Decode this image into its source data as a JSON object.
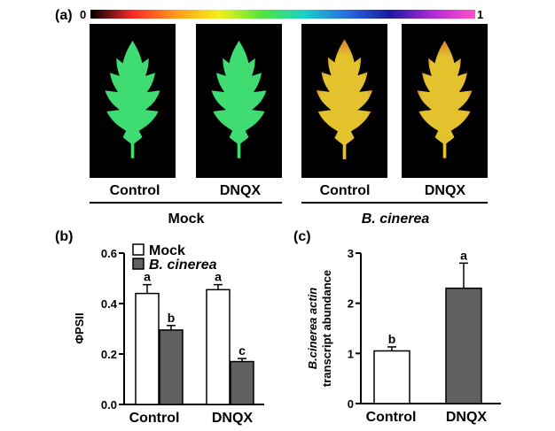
{
  "panel_a": {
    "letter": "(a)",
    "scale_min": "0",
    "scale_max": "1",
    "colorbar_colors": [
      "#000000",
      "#ff2a2a",
      "#ff9a1a",
      "#f4ef1a",
      "#52e63a",
      "#1ad0c8",
      "#2b6be0",
      "#1a1aa0",
      "#b02ad6",
      "#ff4fc8"
    ],
    "leaf_labels": [
      "Control",
      "DNQX",
      "Control",
      "DNQX"
    ],
    "group_labels": [
      "Mock",
      "B. cinerea"
    ],
    "leaf_colors": {
      "mock_fill": "#3fdc72",
      "mock_edge": "#2fc6a8",
      "infected_fill": "#e3c22e",
      "infected_edge": "#d9602a"
    }
  },
  "chart_data": [
    {
      "panel": "(b)",
      "type": "bar",
      "categories": [
        "Control",
        "DNQX"
      ],
      "ylabel": "ΦPSII",
      "ylim": [
        0,
        0.6
      ],
      "yticks": [
        "0.0",
        "0.2",
        "0.4",
        "0.6"
      ],
      "legend_position": "top-left",
      "series": [
        {
          "name": "Mock",
          "color": "#ffffff",
          "values": [
            0.44,
            0.455
          ],
          "errors": [
            0.035,
            0.02
          ],
          "labels": [
            "a",
            "a"
          ]
        },
        {
          "name": "B. cinerea",
          "color": "#606060",
          "values": [
            0.295,
            0.17
          ],
          "errors": [
            0.018,
            0.012
          ],
          "labels": [
            "b",
            "c"
          ]
        }
      ]
    },
    {
      "panel": "(c)",
      "type": "bar",
      "categories": [
        "Control",
        "DNQX"
      ],
      "ylabel": "B.cinerea actin transcript abundance",
      "ylabel_lines": [
        "B.cinerea actin",
        "transcript abundance"
      ],
      "ylim": [
        0,
        3
      ],
      "yticks": [
        "0",
        "1",
        "2",
        "3"
      ],
      "series": [
        {
          "values": [
            1.05,
            2.3
          ],
          "errors": [
            0.08,
            0.5
          ],
          "colors": [
            "#ffffff",
            "#606060"
          ],
          "labels": [
            "b",
            "a"
          ]
        }
      ]
    }
  ]
}
